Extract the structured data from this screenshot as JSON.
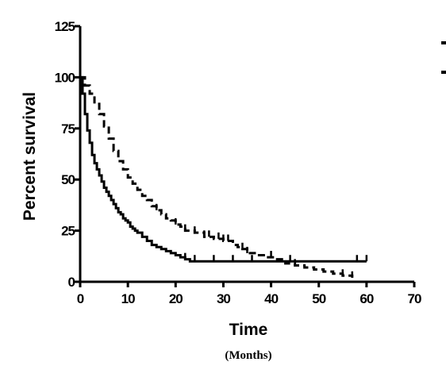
{
  "chart_data": {
    "type": "line",
    "step": true,
    "title": "",
    "xlabel": "Time",
    "xlabel_sub": "(Months)",
    "ylabel": "Percent survival",
    "xlim": [
      0,
      70
    ],
    "ylim": [
      0,
      125
    ],
    "xticks": [
      "0",
      "10",
      "20",
      "30",
      "40",
      "50",
      "60",
      "70"
    ],
    "yticks": [
      "0",
      "25",
      "50",
      "75",
      "100",
      "125"
    ],
    "grid": false,
    "legend": "top-right (labels cropped)",
    "series": [
      {
        "style": "solid",
        "color": "#000000",
        "x": [
          0,
          0.5,
          1,
          1.5,
          2,
          2.5,
          3,
          3.5,
          4,
          4.5,
          5,
          5.5,
          6,
          6.5,
          7,
          7.5,
          8,
          8.5,
          9,
          9.5,
          10,
          10.5,
          11,
          11.5,
          12,
          13,
          14,
          15,
          16,
          17,
          18,
          19,
          20,
          21,
          22,
          23,
          40,
          60
        ],
        "y": [
          100,
          92,
          82,
          74,
          68,
          62,
          58,
          55,
          52,
          49,
          46,
          44,
          42,
          40,
          38,
          36,
          34,
          33,
          31,
          30,
          29,
          27,
          26,
          25,
          24,
          22,
          20,
          18,
          17,
          16,
          15,
          14,
          13,
          12,
          11,
          10,
          10,
          10
        ],
        "censored_x": [
          22,
          24,
          28,
          32,
          36,
          44,
          58,
          60
        ]
      },
      {
        "style": "dashed",
        "color": "#000000",
        "x": [
          0,
          1,
          2,
          3,
          4,
          5,
          6,
          7,
          8,
          9,
          10,
          11,
          12,
          13,
          14,
          15,
          16,
          17,
          18,
          19,
          20,
          21,
          22,
          24,
          26,
          28,
          30,
          32,
          33,
          34,
          35,
          37,
          39,
          41,
          43,
          45,
          47,
          49,
          51,
          53,
          55,
          57
        ],
        "y": [
          100,
          96,
          92,
          87,
          82,
          76,
          70,
          64,
          59,
          55,
          51,
          48,
          45,
          42,
          40,
          37,
          35,
          33,
          31,
          30,
          28,
          27,
          25,
          24,
          22,
          21,
          20,
          18,
          17,
          16,
          14,
          13,
          12,
          11,
          9,
          8,
          7,
          6,
          5,
          4,
          3,
          2
        ],
        "censored_x": [
          16,
          20,
          22,
          24,
          26,
          27,
          29,
          30,
          31,
          34,
          35,
          40,
          45,
          55,
          57
        ]
      }
    ]
  }
}
